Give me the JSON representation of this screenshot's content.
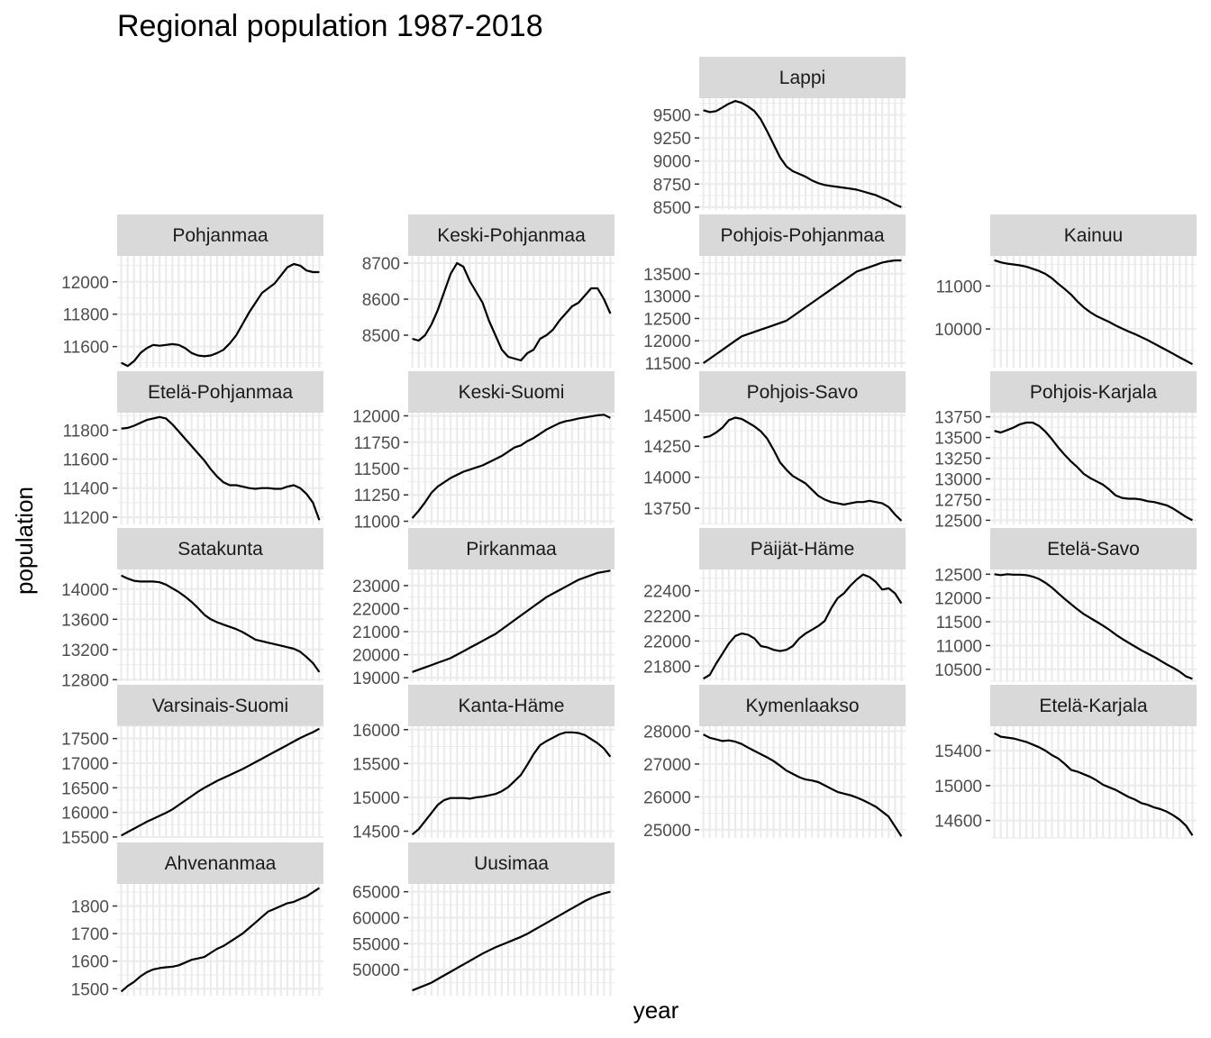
{
  "chart_data": {
    "type": "line",
    "title": "Regional population 1987-2018",
    "xlabel": "year",
    "ylabel": "population",
    "x_range": [
      1987,
      2018
    ],
    "grid": true,
    "colors": {
      "panel_background": "#ffffff",
      "gridline": "#ebebeb",
      "strip_background": "#d9d9d9",
      "line": "#000000",
      "tick_text": "#4d4d4d"
    },
    "panels": [
      {
        "name": "Lappi",
        "row": 0,
        "col": 2,
        "ylim": [
          8470,
          9680
        ],
        "yticks": [
          8500,
          8750,
          9000,
          9250,
          9500
        ],
        "values": [
          9550,
          9530,
          9540,
          9580,
          9620,
          9650,
          9630,
          9590,
          9540,
          9450,
          9320,
          9180,
          9040,
          8940,
          8890,
          8860,
          8830,
          8790,
          8760,
          8740,
          8730,
          8720,
          8710,
          8700,
          8690,
          8670,
          8650,
          8630,
          8600,
          8570,
          8530,
          8500
        ]
      },
      {
        "name": "Pohjanmaa",
        "row": 1,
        "col": 0,
        "ylim": [
          11470,
          12160
        ],
        "yticks": [
          11600,
          11800,
          12000
        ],
        "values": [
          11500,
          11480,
          11510,
          11560,
          11590,
          11610,
          11605,
          11610,
          11615,
          11610,
          11590,
          11560,
          11545,
          11540,
          11545,
          11560,
          11580,
          11620,
          11670,
          11740,
          11810,
          11870,
          11930,
          11960,
          11990,
          12040,
          12090,
          12110,
          12100,
          12070,
          12060,
          12060
        ]
      },
      {
        "name": "Keski-Pohjanmaa",
        "row": 1,
        "col": 1,
        "ylim": [
          8410,
          8720
        ],
        "yticks": [
          8500,
          8600,
          8700
        ],
        "values": [
          8490,
          8485,
          8500,
          8530,
          8570,
          8620,
          8670,
          8700,
          8690,
          8650,
          8620,
          8590,
          8540,
          8500,
          8460,
          8440,
          8435,
          8430,
          8450,
          8460,
          8490,
          8500,
          8515,
          8540,
          8560,
          8580,
          8590,
          8610,
          8630,
          8630,
          8600,
          8560
        ]
      },
      {
        "name": "Pohjois-Pohjanmaa",
        "row": 1,
        "col": 2,
        "ylim": [
          11400,
          13900
        ],
        "yticks": [
          11500,
          12000,
          12500,
          13000,
          13500
        ],
        "values": [
          11500,
          11600,
          11700,
          11800,
          11900,
          12000,
          12100,
          12150,
          12200,
          12250,
          12300,
          12350,
          12400,
          12450,
          12550,
          12650,
          12750,
          12850,
          12950,
          13050,
          13150,
          13250,
          13350,
          13450,
          13550,
          13600,
          13650,
          13700,
          13750,
          13780,
          13800,
          13800
        ]
      },
      {
        "name": "Kainuu",
        "row": 1,
        "col": 3,
        "ylim": [
          9100,
          11700
        ],
        "yticks": [
          10000,
          11000
        ],
        "values": [
          11600,
          11550,
          11520,
          11500,
          11480,
          11450,
          11400,
          11350,
          11280,
          11180,
          11050,
          10930,
          10800,
          10640,
          10500,
          10390,
          10300,
          10230,
          10160,
          10080,
          10010,
          9940,
          9880,
          9810,
          9740,
          9660,
          9580,
          9500,
          9420,
          9340,
          9260,
          9180
        ]
      },
      {
        "name": "Etelä-Pohjanmaa",
        "row": 2,
        "col": 0,
        "ylim": [
          11150,
          11920
        ],
        "yticks": [
          11200,
          11400,
          11600,
          11800
        ],
        "values": [
          11810,
          11815,
          11830,
          11850,
          11870,
          11880,
          11890,
          11880,
          11840,
          11790,
          11740,
          11690,
          11640,
          11590,
          11530,
          11480,
          11440,
          11420,
          11420,
          11410,
          11400,
          11395,
          11400,
          11400,
          11395,
          11395,
          11410,
          11420,
          11400,
          11360,
          11300,
          11180
        ]
      },
      {
        "name": "Keski-Suomi",
        "row": 2,
        "col": 1,
        "ylim": [
          10970,
          12030
        ],
        "yticks": [
          11000,
          11250,
          11500,
          11750,
          12000
        ],
        "values": [
          11030,
          11100,
          11180,
          11270,
          11330,
          11370,
          11410,
          11440,
          11470,
          11490,
          11510,
          11530,
          11560,
          11590,
          11620,
          11660,
          11700,
          11720,
          11760,
          11790,
          11830,
          11870,
          11900,
          11930,
          11950,
          11960,
          11975,
          11985,
          11995,
          12005,
          12010,
          11980
        ]
      },
      {
        "name": "Pohjois-Savo",
        "row": 2,
        "col": 2,
        "ylim": [
          13620,
          14520
        ],
        "yticks": [
          13750,
          14000,
          14250,
          14500
        ],
        "values": [
          14320,
          14330,
          14360,
          14400,
          14460,
          14480,
          14470,
          14440,
          14410,
          14370,
          14310,
          14220,
          14120,
          14060,
          14010,
          13980,
          13950,
          13900,
          13850,
          13820,
          13800,
          13790,
          13780,
          13790,
          13800,
          13800,
          13810,
          13800,
          13790,
          13760,
          13700,
          13650
        ]
      },
      {
        "name": "Pohjois-Karjala",
        "row": 2,
        "col": 3,
        "ylim": [
          12450,
          13800
        ],
        "yticks": [
          12500,
          12750,
          13000,
          13250,
          13500,
          13750
        ],
        "values": [
          13580,
          13560,
          13590,
          13620,
          13660,
          13680,
          13680,
          13640,
          13570,
          13480,
          13380,
          13290,
          13210,
          13140,
          13060,
          13010,
          12970,
          12930,
          12870,
          12800,
          12770,
          12760,
          12760,
          12750,
          12730,
          12720,
          12700,
          12680,
          12640,
          12590,
          12540,
          12500
        ]
      },
      {
        "name": "Satakunta",
        "row": 3,
        "col": 0,
        "ylim": [
          12780,
          14260
        ],
        "yticks": [
          12800,
          13200,
          13600,
          14000
        ],
        "values": [
          14180,
          14140,
          14110,
          14100,
          14100,
          14100,
          14090,
          14060,
          14010,
          13960,
          13900,
          13830,
          13750,
          13660,
          13600,
          13560,
          13530,
          13500,
          13470,
          13430,
          13380,
          13330,
          13310,
          13290,
          13270,
          13250,
          13230,
          13210,
          13170,
          13100,
          13020,
          12900
        ]
      },
      {
        "name": "Pirkanmaa",
        "row": 3,
        "col": 1,
        "ylim": [
          18850,
          23700
        ],
        "yticks": [
          19000,
          20000,
          21000,
          22000,
          23000
        ],
        "values": [
          19250,
          19350,
          19450,
          19550,
          19650,
          19750,
          19850,
          20000,
          20150,
          20300,
          20450,
          20600,
          20750,
          20900,
          21100,
          21300,
          21500,
          21700,
          21900,
          22100,
          22300,
          22500,
          22650,
          22800,
          22950,
          23100,
          23250,
          23350,
          23450,
          23550,
          23600,
          23650
        ]
      },
      {
        "name": "Päijät-Häme",
        "row": 3,
        "col": 2,
        "ylim": [
          21680,
          22570
        ],
        "yticks": [
          21800,
          22000,
          22200,
          22400
        ],
        "values": [
          21700,
          21730,
          21820,
          21900,
          21980,
          22040,
          22060,
          22050,
          22020,
          21960,
          21950,
          21930,
          21920,
          21930,
          21960,
          22020,
          22060,
          22090,
          22120,
          22160,
          22260,
          22340,
          22380,
          22440,
          22490,
          22530,
          22510,
          22470,
          22410,
          22420,
          22380,
          22300
        ]
      },
      {
        "name": "Etelä-Savo",
        "row": 3,
        "col": 3,
        "ylim": [
          10250,
          12600
        ],
        "yticks": [
          10500,
          11000,
          11500,
          12000,
          12500
        ],
        "values": [
          12500,
          12480,
          12500,
          12490,
          12490,
          12480,
          12450,
          12400,
          12320,
          12220,
          12100,
          11980,
          11870,
          11760,
          11660,
          11580,
          11500,
          11420,
          11330,
          11230,
          11140,
          11060,
          10980,
          10900,
          10830,
          10760,
          10680,
          10600,
          10530,
          10450,
          10350,
          10300
        ]
      },
      {
        "name": "Varsinais-Suomi",
        "row": 4,
        "col": 0,
        "ylim": [
          15480,
          17750
        ],
        "yticks": [
          15500,
          16000,
          16500,
          17000,
          17500
        ],
        "values": [
          15530,
          15600,
          15670,
          15740,
          15810,
          15870,
          15930,
          15990,
          16060,
          16150,
          16240,
          16330,
          16420,
          16500,
          16570,
          16640,
          16700,
          16760,
          16820,
          16880,
          16950,
          17020,
          17090,
          17160,
          17230,
          17300,
          17370,
          17440,
          17510,
          17570,
          17630,
          17700
        ]
      },
      {
        "name": "Kanta-Häme",
        "row": 4,
        "col": 1,
        "ylim": [
          14400,
          16050
        ],
        "yticks": [
          14500,
          15000,
          15500,
          16000
        ],
        "values": [
          14450,
          14530,
          14650,
          14770,
          14890,
          14960,
          14990,
          14990,
          14990,
          14980,
          15000,
          15010,
          15030,
          15050,
          15090,
          15150,
          15240,
          15330,
          15480,
          15640,
          15770,
          15830,
          15880,
          15930,
          15960,
          15960,
          15950,
          15920,
          15860,
          15800,
          15720,
          15600
        ]
      },
      {
        "name": "Kymenlaakso",
        "row": 4,
        "col": 2,
        "ylim": [
          24750,
          28150
        ],
        "yticks": [
          25000,
          26000,
          27000,
          28000
        ],
        "values": [
          27900,
          27800,
          27750,
          27700,
          27720,
          27680,
          27610,
          27500,
          27400,
          27300,
          27200,
          27090,
          26950,
          26800,
          26700,
          26600,
          26530,
          26500,
          26450,
          26350,
          26250,
          26150,
          26100,
          26050,
          25980,
          25900,
          25800,
          25700,
          25550,
          25400,
          25100,
          24800
        ]
      },
      {
        "name": "Etelä-Karjala",
        "row": 4,
        "col": 3,
        "ylim": [
          14400,
          15680
        ],
        "yticks": [
          14600,
          15000,
          15400
        ],
        "values": [
          15600,
          15560,
          15550,
          15540,
          15520,
          15500,
          15470,
          15440,
          15400,
          15350,
          15310,
          15250,
          15180,
          15160,
          15130,
          15100,
          15060,
          15010,
          14980,
          14950,
          14910,
          14870,
          14840,
          14800,
          14780,
          14750,
          14730,
          14700,
          14660,
          14610,
          14540,
          14430
        ]
      },
      {
        "name": "Ahvenanmaa",
        "row": 5,
        "col": 0,
        "ylim": [
          1475,
          1880
        ],
        "yticks": [
          1500,
          1600,
          1700,
          1800
        ],
        "values": [
          1490,
          1510,
          1525,
          1545,
          1560,
          1570,
          1575,
          1578,
          1580,
          1585,
          1595,
          1605,
          1610,
          1615,
          1630,
          1645,
          1655,
          1670,
          1685,
          1700,
          1720,
          1740,
          1760,
          1780,
          1790,
          1800,
          1810,
          1815,
          1825,
          1835,
          1850,
          1865
        ]
      },
      {
        "name": "Uusimaa",
        "row": 5,
        "col": 1,
        "ylim": [
          45000,
          66500
        ],
        "yticks": [
          50000,
          55000,
          60000,
          65000
        ],
        "values": [
          46000,
          46500,
          47000,
          47500,
          48200,
          48900,
          49600,
          50300,
          51000,
          51700,
          52400,
          53100,
          53700,
          54300,
          54800,
          55300,
          55800,
          56300,
          56900,
          57600,
          58300,
          59000,
          59700,
          60400,
          61100,
          61800,
          62500,
          63200,
          63800,
          64300,
          64700,
          65000
        ]
      }
    ]
  }
}
